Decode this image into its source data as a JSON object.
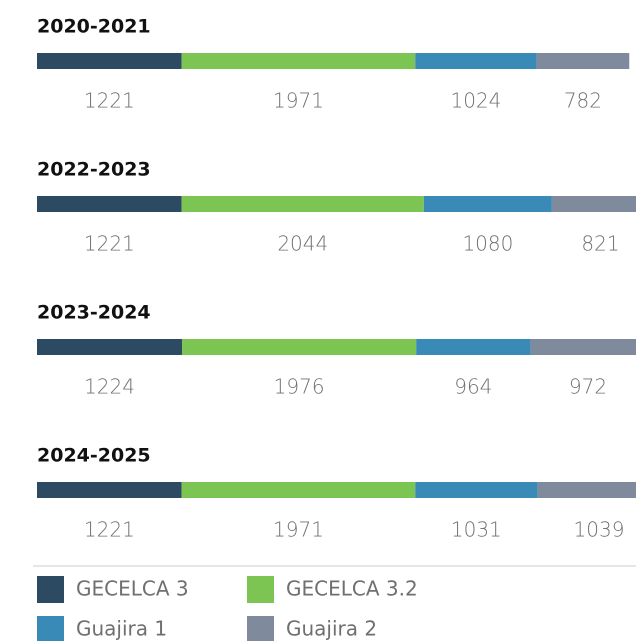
{
  "chart_data": {
    "type": "bar",
    "orientation": "horizontal",
    "stacked": true,
    "categories": [
      "2020-2021",
      "2022-2023",
      "2023-2024",
      "2024-2025"
    ],
    "series": [
      {
        "name": "GECELCA 3",
        "color": "#2d4a63",
        "values": [
          1221,
          1221,
          1224,
          1221
        ]
      },
      {
        "name": "GECELCA 3.2",
        "color": "#7dc552",
        "values": [
          1971,
          2044,
          1976,
          1971
        ]
      },
      {
        "name": "Guajira 1",
        "color": "#3a8ab8",
        "values": [
          1024,
          1080,
          964,
          1031
        ]
      },
      {
        "name": "Guajira 2",
        "color": "#7f8b9c",
        "values": [
          782,
          821,
          972,
          1039
        ]
      }
    ]
  }
}
